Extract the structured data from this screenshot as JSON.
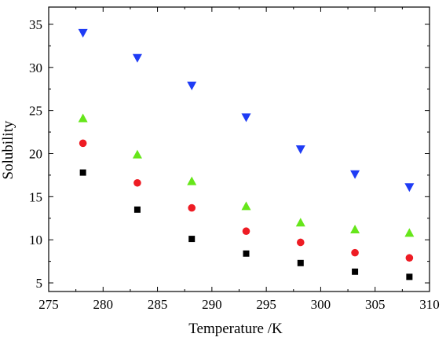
{
  "chart_data": {
    "type": "scatter",
    "title": "",
    "xlabel": "Temperature /K",
    "ylabel": "Solubility",
    "xlim": [
      275,
      310
    ],
    "ylim": [
      4,
      37
    ],
    "xticks": [
      275,
      280,
      285,
      290,
      295,
      300,
      305,
      310
    ],
    "yticks": [
      5,
      10,
      15,
      20,
      25,
      30,
      35
    ],
    "x": [
      278.15,
      283.15,
      288.15,
      293.15,
      298.15,
      303.15,
      308.15
    ],
    "legend": "none",
    "grid": false,
    "series": [
      {
        "marker": "square",
        "color": "#000000",
        "values": [
          17.8,
          13.5,
          10.1,
          8.4,
          7.3,
          6.3,
          5.7
        ]
      },
      {
        "marker": "circle",
        "color": "#ee1c24",
        "values": [
          21.2,
          16.6,
          13.7,
          11.0,
          9.7,
          8.5,
          7.9
        ]
      },
      {
        "marker": "triangle-up",
        "color": "#66e61a",
        "values": [
          24.1,
          19.9,
          16.8,
          13.9,
          12.0,
          11.2,
          10.8
        ]
      },
      {
        "marker": "triangle-down",
        "color": "#1f3cf5",
        "values": [
          34.0,
          31.1,
          27.9,
          24.2,
          20.5,
          17.6,
          16.1
        ]
      }
    ]
  }
}
